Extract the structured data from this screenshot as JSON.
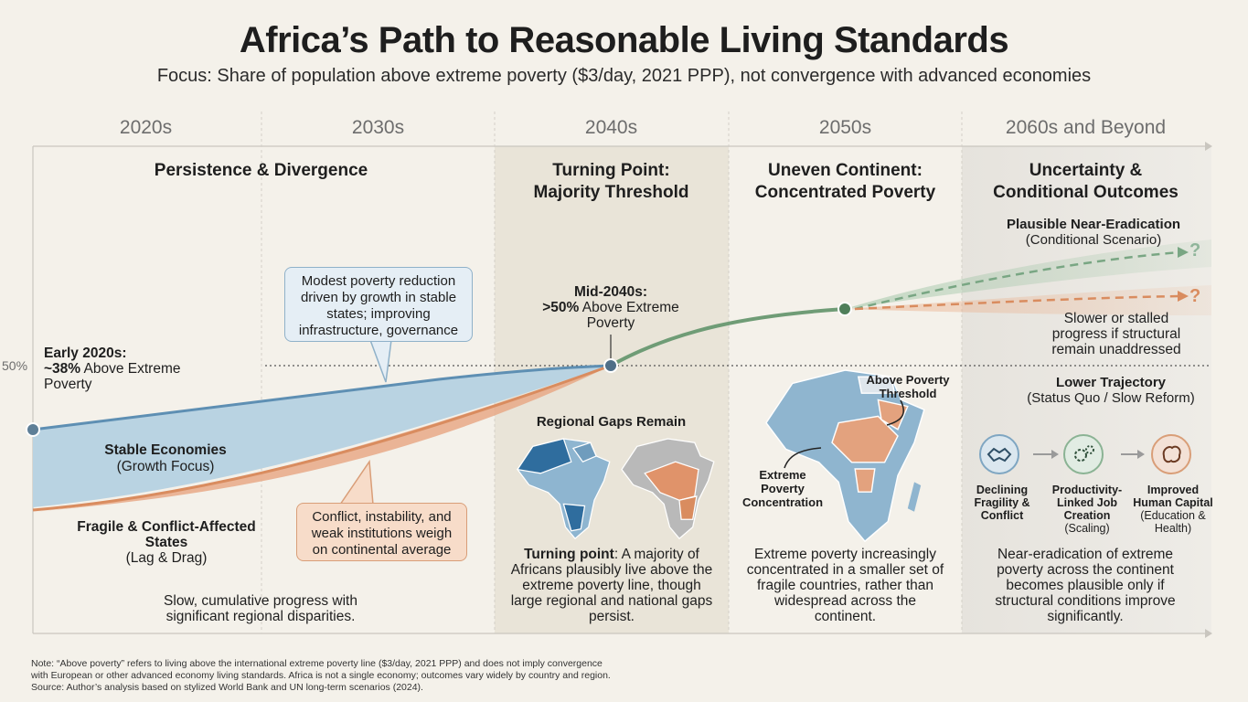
{
  "header": {
    "title": "Africa’s Path to Reasonable Living Standards",
    "subtitle": "Focus: Share of population above extreme poverty ($3/day, 2021 PPP), not convergence with advanced economies"
  },
  "timeline": {
    "decades": [
      "2020s",
      "2030s",
      "2040s",
      "2050s",
      "2060s and Beyond"
    ]
  },
  "axis": {
    "threshold_label": "50%"
  },
  "phases": {
    "p1": {
      "title": "Persistence & Divergence",
      "summary": "Slow, cumulative progress with significant regional disparities."
    },
    "p2": {
      "title_l1": "Turning Point:",
      "title_l2": "Majority Threshold",
      "gaps_title": "Regional Gaps Remain",
      "summary_bold": "Turning point",
      "summary_rest": ": A majority of Africans plausibly live above the extreme poverty line, though large regional and national gaps persist."
    },
    "p3": {
      "title_l1": "Uneven Continent:",
      "title_l2": "Concentrated Poverty",
      "map_label_above": "Above Poverty Threshold",
      "map_label_extreme": "Extreme Poverty Concentration",
      "summary": "Extreme poverty increasingly concentrated in a smaller set of fragile countries, rather than widespread across the continent."
    },
    "p4": {
      "title_l1": "Uncertainty &",
      "title_l2": "Conditional Outcomes",
      "upper_title": "Plausible Near-Eradication",
      "upper_sub": "(Conditional Scenario)",
      "stalled": "Slower or stalled progress if structural remain unaddressed",
      "lower_title": "Lower Trajectory",
      "lower_sub": "(Status Quo / Slow Reform)",
      "conditions": [
        {
          "title": "Declining Fragility & Conflict",
          "sub": ""
        },
        {
          "title": "Productivity-Linked Job Creation",
          "sub": "(Scaling)"
        },
        {
          "title": "Improved Human Capital",
          "sub": "(Education & Health)"
        }
      ],
      "summary": "Near-eradication of extreme poverty across the continent becomes plausible only if structural conditions improve significantly.",
      "question_mark": "?"
    }
  },
  "annotations": {
    "start_title": "Early 2020s:",
    "start_value": "~38%",
    "start_rest": " Above Extreme Poverty",
    "mid_title": "Mid-2040s:",
    "mid_value": ">50%",
    "mid_rest": " Above Extreme Poverty",
    "stable_title": "Stable Economies",
    "stable_sub": "(Growth Focus)",
    "fragile_title": "Fragile & Conflict-Affected States",
    "fragile_sub": "(Lag & Drag)",
    "callout_blue": "Modest poverty reduction driven by growth in stable states; improving infrastructure, governance",
    "callout_orange": "Conflict, instability, and weak institutions weigh on continental average"
  },
  "chart_data": {
    "type": "area",
    "title": "",
    "x_unit": "year",
    "threshold": 50,
    "series": [
      {
        "name": "Stable Economies",
        "x": [
          2020,
          2030,
          2045
        ],
        "values": [
          38,
          43,
          50
        ]
      },
      {
        "name": "Fragile & Conflict-Affected States",
        "x": [
          2020,
          2030,
          2045
        ],
        "values": [
          26,
          33,
          50
        ]
      }
    ],
    "scenarios": [
      "Plausible Near-Eradication",
      "Slower or stalled progress"
    ],
    "colors": {
      "stable": "#a9c9dc",
      "stable_line": "#5e8fb3",
      "fragile": "#e4a27b",
      "green": "#6f9c76",
      "orange": "#d98c5f"
    }
  },
  "footer": {
    "note_l1": "Note: “Above poverty” refers to living above the international extreme poverty line ($3/day, 2021 PPP) and does not imply convergence",
    "note_l2": "with European or other advanced economy living standards. Africa is not a single economy; outcomes vary widely by country and region.",
    "source": "Source: Author’s analysis based on stylized World Bank and UN long-term scenarios (2024)."
  }
}
